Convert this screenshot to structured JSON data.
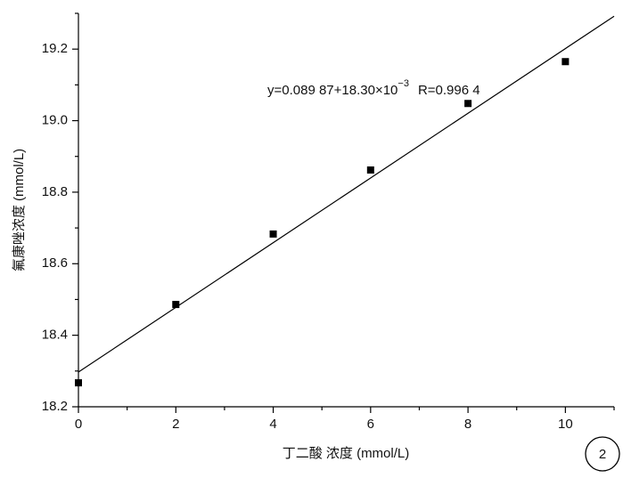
{
  "chart_data": {
    "type": "scatter",
    "x_label": "丁二酸 浓度 (mmol/L)",
    "y_label": "氟康唑浓度 (mmol/L)",
    "annotation": {
      "main": "y=0.089 87+18.30×10",
      "exponent": "−3",
      "r": "R=0.996 4"
    },
    "panel_label": "2",
    "x": [
      0,
      2,
      4,
      6,
      8,
      10
    ],
    "values": [
      18.267,
      18.486,
      18.683,
      18.862,
      19.048,
      19.165
    ],
    "color": "#000000",
    "fit_line": {
      "x": [
        0,
        11
      ],
      "y": [
        18.297,
        19.292
      ],
      "color": "#000000"
    },
    "xlim": [
      0,
      11
    ],
    "ylim": [
      18.2,
      19.3
    ],
    "xticks": [
      0,
      2,
      4,
      6,
      8,
      10
    ],
    "yticks": [
      18.2,
      18.4,
      18.6,
      18.8,
      19.0,
      19.2
    ],
    "xminorticks": [
      1,
      3,
      5,
      7,
      9,
      11
    ],
    "yminorticks": [
      18.3,
      18.5,
      18.7,
      18.9,
      19.1,
      19.3
    ]
  }
}
